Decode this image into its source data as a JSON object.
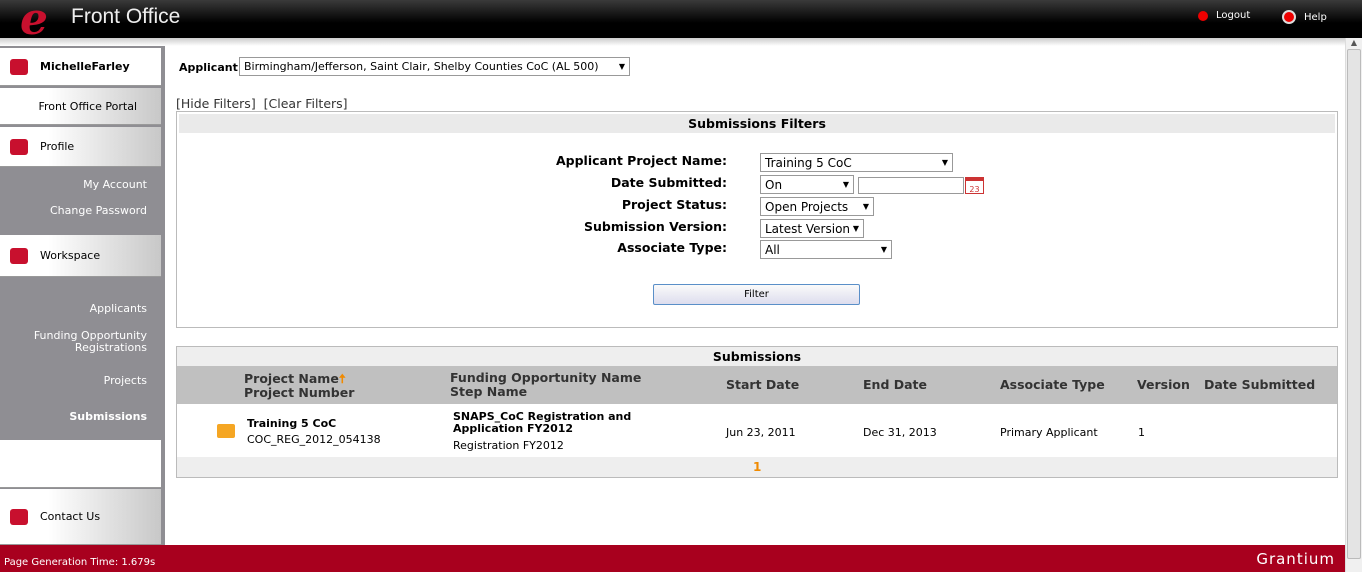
{
  "header": {
    "logo": "e",
    "title": "Front Office",
    "logout": "Logout",
    "help": "Help"
  },
  "sidebar": {
    "user": "MichelleFarley",
    "portal": "Front Office Portal",
    "profile": "Profile",
    "my_account": "My Account",
    "change_password": "Change Password",
    "workspace": "Workspace",
    "applicants": "Applicants",
    "funding_opp_reg": "Funding Opportunity Registrations",
    "projects": "Projects",
    "submissions": "Submissions",
    "contact_us": "Contact Us"
  },
  "applicant": {
    "label": "Applicant:",
    "value": "Birmingham/Jefferson, Saint Clair, Shelby Counties CoC (AL 500)"
  },
  "filter_links": {
    "hide": "[Hide Filters]",
    "clear": "[Clear Filters]"
  },
  "filters": {
    "title": "Submissions Filters",
    "project_name_label": "Applicant Project Name:",
    "project_name": "Training 5 CoC",
    "date_label": "Date Submitted:",
    "date_op": "On",
    "date_value": "",
    "date_icon": "calendar-icon",
    "date_icon_text": "23",
    "status_label": "Project Status:",
    "status": "Open Projects",
    "version_label": "Submission Version:",
    "version": "Latest Version",
    "assoc_label": "Associate Type:",
    "assoc": "All",
    "button": "Filter"
  },
  "submissions": {
    "title": "Submissions",
    "headers": {
      "project_name": "Project Name",
      "project_number": "Project Number",
      "funding": "Funding Opportunity Name",
      "step": "Step Name",
      "start": "Start Date",
      "end": "End Date",
      "assoc": "Associate Type",
      "version": "Version",
      "submitted": "Date Submitted"
    },
    "rows": [
      {
        "project_name": "Training 5 CoC",
        "project_number": "COC_REG_2012_054138",
        "funding": "SNAPS_CoC Registration and Application FY2012",
        "step": "Registration FY2012",
        "start": "Jun 23, 2011",
        "end": "Dec 31, 2013",
        "assoc": "Primary Applicant",
        "version": "1",
        "submitted": ""
      }
    ],
    "page": "1"
  },
  "footer": {
    "gen_time": "Page Generation Time: 1.679s",
    "brand": "Grantium"
  },
  "colors": {
    "brand_red": "#c8102e",
    "footer": "#a8001e",
    "accent_orange": "#f08a00"
  }
}
